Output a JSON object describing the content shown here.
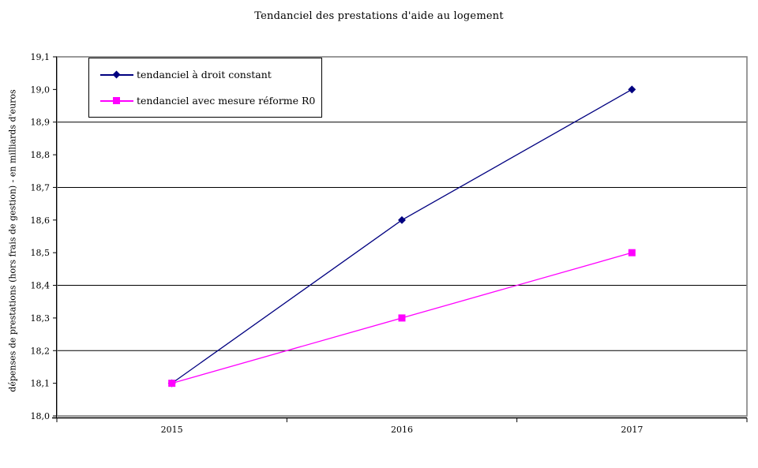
{
  "chart_data": {
    "type": "line",
    "title": "Tendanciel des prestations d'aide au logement",
    "ylabel": "dépenses de prestations (hors frais de gestion) -  en milliards d'euros",
    "xlabel": "",
    "categories": [
      "2015",
      "2016",
      "2017"
    ],
    "series": [
      {
        "name": "tendanciel à droit constant",
        "color": "#000080",
        "marker": "diamond",
        "values": [
          18.1,
          18.6,
          19.0
        ]
      },
      {
        "name": "tendanciel avec mesure réforme R0",
        "color": "#FF00FF",
        "marker": "square",
        "values": [
          18.1,
          18.3,
          18.5
        ]
      }
    ],
    "ylim": [
      18.0,
      19.1
    ],
    "ytick_step": 0.1,
    "ytick_labels": [
      "18,0",
      "18,1",
      "18,2",
      "18,3",
      "18,4",
      "18,5",
      "18,6",
      "18,7",
      "18,8",
      "18,9",
      "19,0",
      "19,1"
    ],
    "gridline_values": [
      18.2,
      18.4,
      18.7,
      18.9
    ],
    "grid_on": true,
    "legend_position": "top-left",
    "colors": {
      "grid": "#000000",
      "plot_border": "#808080",
      "axis": "#000000",
      "text": "#000000",
      "background": "#FFFFFF"
    }
  }
}
